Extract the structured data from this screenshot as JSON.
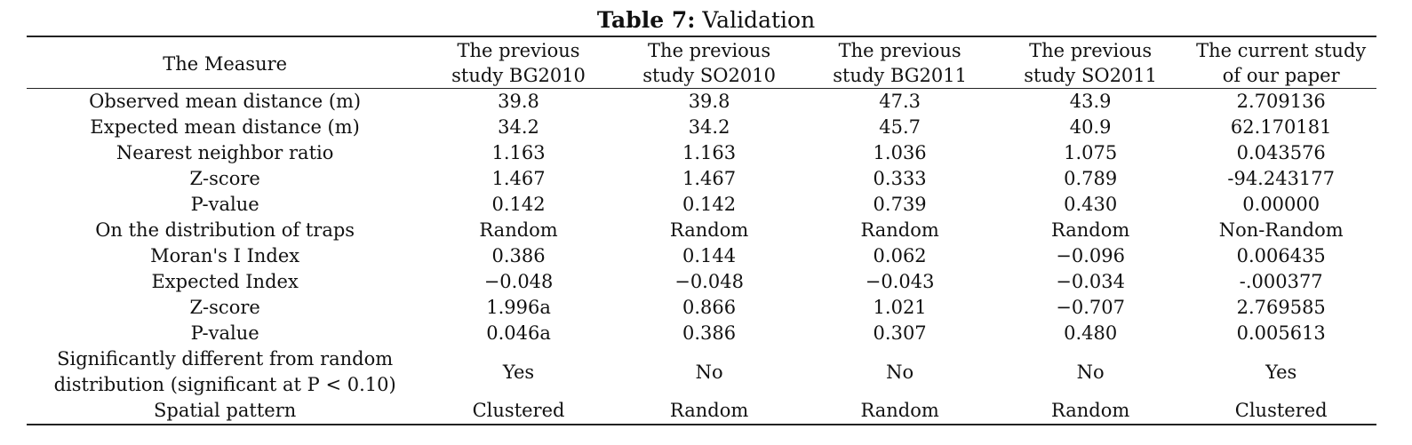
{
  "caption": {
    "label": "Table 7:",
    "title": "Validation"
  },
  "table": {
    "headers": [
      [
        "The Measure"
      ],
      [
        "The previous",
        "study BG2010"
      ],
      [
        "The previous",
        "study SO2010"
      ],
      [
        "The previous",
        "study BG2011"
      ],
      [
        "The previous",
        "study SO2011"
      ],
      [
        "The current study",
        "of our paper"
      ]
    ],
    "rows": [
      {
        "measure": [
          "Observed mean distance (m)"
        ],
        "values": [
          "39.8",
          "39.8",
          "47.3",
          "43.9",
          "2.709136"
        ]
      },
      {
        "measure": [
          "Expected mean distance (m)"
        ],
        "values": [
          "34.2",
          "34.2",
          "45.7",
          "40.9",
          "62.170181"
        ]
      },
      {
        "measure": [
          "Nearest neighbor ratio"
        ],
        "values": [
          "1.163",
          "1.163",
          "1.036",
          "1.075",
          "0.043576"
        ]
      },
      {
        "measure": [
          "Z-score"
        ],
        "values": [
          "1.467",
          "1.467",
          "0.333",
          "0.789",
          "-94.243177"
        ]
      },
      {
        "measure": [
          "P-value"
        ],
        "values": [
          "0.142",
          "0.142",
          "0.739",
          "0.430",
          "0.00000"
        ]
      },
      {
        "measure": [
          "On the distribution of traps"
        ],
        "values": [
          "Random",
          "Random",
          "Random",
          "Random",
          "Non-Random"
        ]
      },
      {
        "measure": [
          "Moran's I Index"
        ],
        "values": [
          "0.386",
          "0.144",
          "0.062",
          "−0.096",
          "0.006435"
        ]
      },
      {
        "measure": [
          "Expected Index"
        ],
        "values": [
          "−0.048",
          "−0.048",
          "−0.043",
          "−0.034",
          "-.000377"
        ]
      },
      {
        "measure": [
          "Z-score"
        ],
        "values": [
          "1.996a",
          "0.866",
          "1.021",
          "−0.707",
          "2.769585"
        ]
      },
      {
        "measure": [
          "P-value"
        ],
        "values": [
          "0.046a",
          "0.386",
          "0.307",
          "0.480",
          "0.005613"
        ]
      },
      {
        "measure": [
          "Significantly different from random",
          "distribution (significant at P < 0.10)"
        ],
        "values": [
          "Yes",
          "No",
          "No",
          "No",
          "Yes"
        ]
      },
      {
        "measure": [
          "Spatial pattern"
        ],
        "values": [
          "Clustered",
          "Random",
          "Random",
          "Random",
          "Clustered"
        ]
      }
    ]
  }
}
